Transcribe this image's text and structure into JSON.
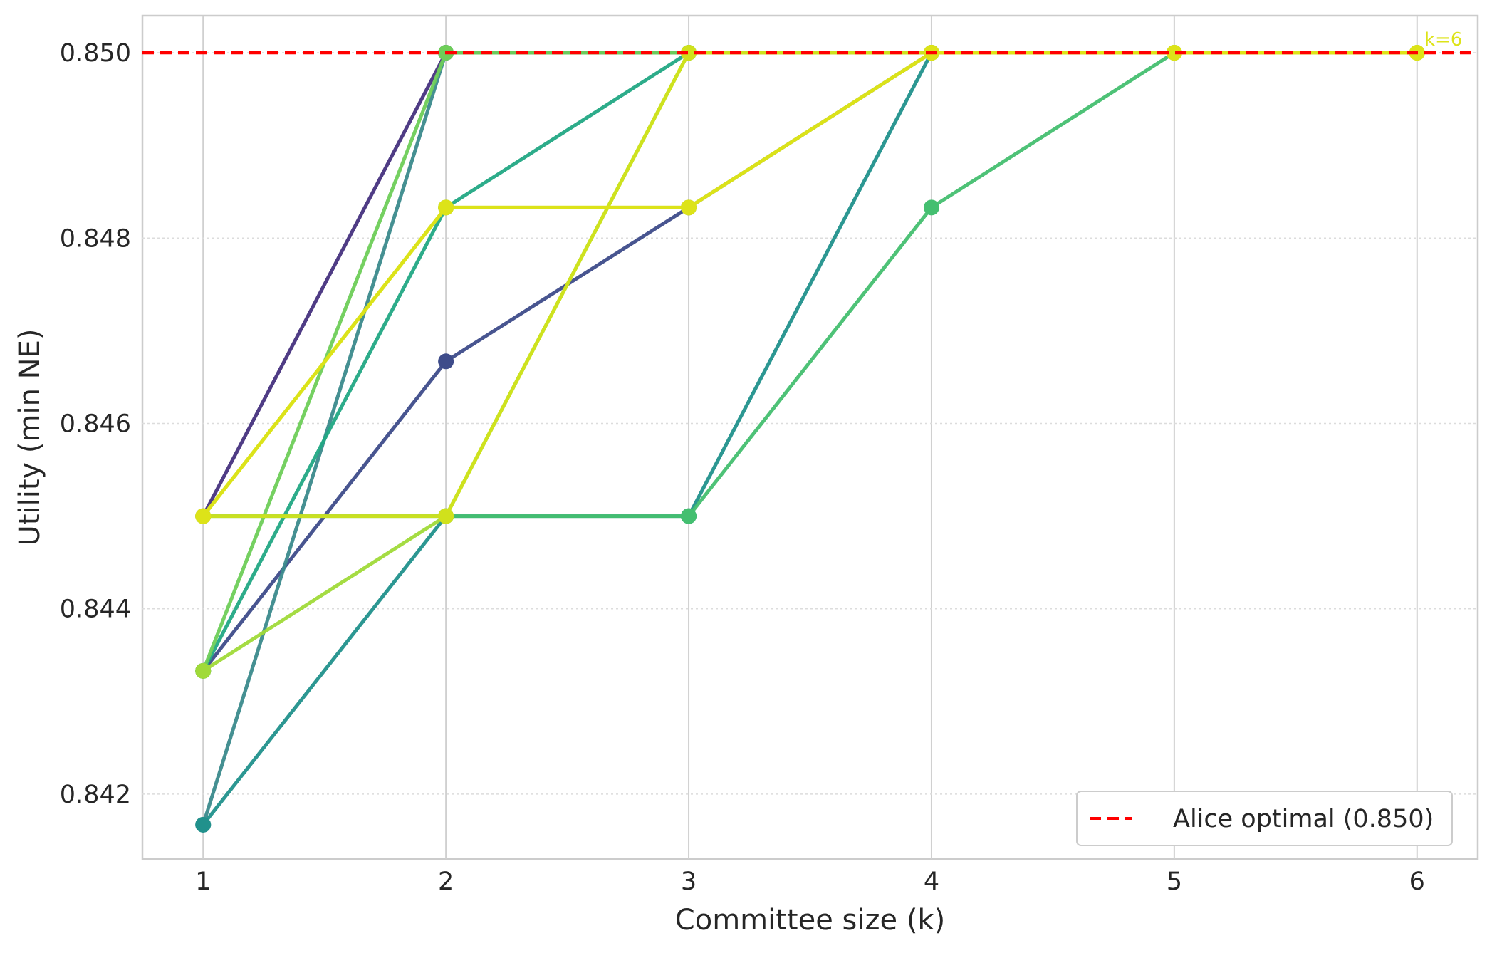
{
  "chart_data": {
    "type": "line",
    "title": "",
    "xlabel": "Committee size (k)",
    "ylabel": "Utility (min NE)",
    "xlim": [
      0.75,
      6.25
    ],
    "ylim": [
      0.8413,
      0.8504
    ],
    "x_ticks": [
      1,
      2,
      3,
      4,
      5,
      6
    ],
    "y_ticks": [
      0.842,
      0.844,
      0.846,
      0.848,
      0.85
    ],
    "x_tick_labels": [
      "1",
      "2",
      "3",
      "4",
      "5",
      "6"
    ],
    "y_tick_labels": [
      "0.842",
      "0.844",
      "0.846",
      "0.848",
      "0.850"
    ],
    "grid": true,
    "series": [
      {
        "color": "#46327e",
        "x": [
          1,
          2
        ],
        "y": [
          0.845,
          0.85
        ]
      },
      {
        "color": "#3e4c8a",
        "x": [
          1,
          2,
          3,
          4
        ],
        "y": [
          0.84333,
          0.84667,
          0.84833,
          0.85
        ]
      },
      {
        "color": "#3b8a8c",
        "x": [
          1,
          2,
          3
        ],
        "y": [
          0.84167,
          0.85,
          0.85
        ]
      },
      {
        "color": "#21918c",
        "x": [
          1,
          2,
          3,
          4
        ],
        "y": [
          0.84167,
          0.845,
          0.845,
          0.85
        ]
      },
      {
        "color": "#22a884",
        "x": [
          1,
          2,
          3
        ],
        "y": [
          0.84333,
          0.84833,
          0.85
        ]
      },
      {
        "color": "#44bf70",
        "x": [
          1,
          2,
          3,
          4,
          5
        ],
        "y": [
          0.845,
          0.845,
          0.845,
          0.84833,
          0.85
        ]
      },
      {
        "color": "#6ece58",
        "x": [
          1,
          2,
          3,
          4,
          5,
          6
        ],
        "y": [
          0.84333,
          0.85,
          0.85,
          0.85,
          0.85,
          0.85
        ]
      },
      {
        "color": "#a0da39",
        "x": [
          1,
          2,
          3,
          4
        ],
        "y": [
          0.84333,
          0.845,
          0.85,
          0.85
        ]
      },
      {
        "color": "#bddf26",
        "x": [
          1,
          2,
          3,
          4
        ],
        "y": [
          0.845,
          0.84833,
          0.84833,
          0.85
        ]
      },
      {
        "color": "#d0e11c",
        "x": [
          1,
          2,
          3,
          4,
          5,
          6
        ],
        "y": [
          0.845,
          0.845,
          0.85,
          0.85,
          0.85,
          0.85
        ]
      },
      {
        "color": "#dde318",
        "x": [
          1,
          2,
          3,
          4,
          5,
          6
        ],
        "y": [
          0.845,
          0.84833,
          0.84833,
          0.85,
          0.85,
          0.85
        ]
      }
    ],
    "reference_line": {
      "y": 0.85,
      "color": "#ff0000",
      "style": "dashed",
      "label": "Alice optimal (0.850)"
    },
    "annotation": {
      "text": "k=6",
      "x": 6,
      "y": 0.85,
      "color": "#dde318"
    },
    "legend": {
      "position": "lower-right",
      "entries": [
        "Alice optimal (0.850)"
      ]
    }
  }
}
